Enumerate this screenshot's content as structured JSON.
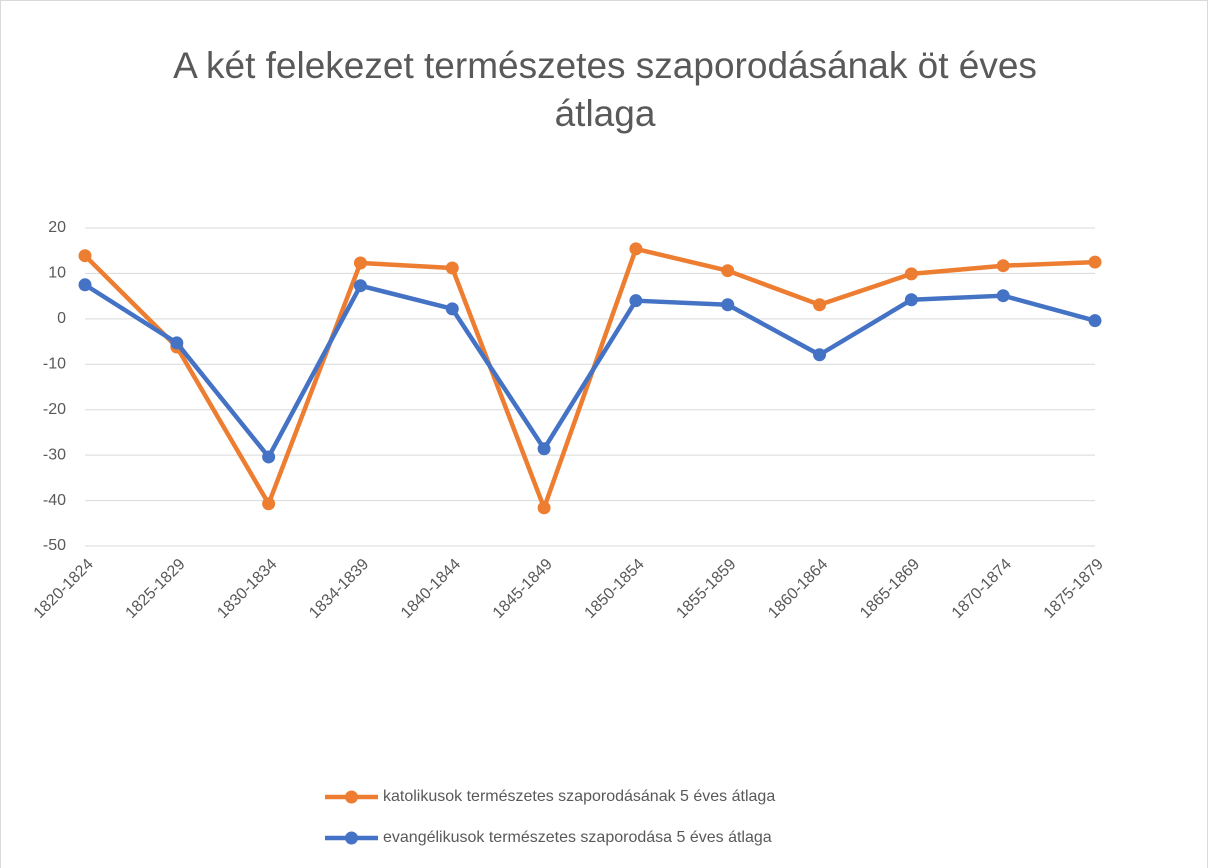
{
  "chart_data": {
    "type": "line",
    "title": "A két felekezet természetes szaporodásának öt éves átlaga",
    "categories": [
      "1820-1824",
      "1825-1829",
      "1830-1834",
      "1834-1839",
      "1840-1844",
      "1845-1849",
      "1850-1854",
      "1855-1859",
      "1860-1864",
      "1865-1869",
      "1870-1874",
      "1875-1879"
    ],
    "series": [
      {
        "name": "katolikusok természetes szaporodásának 5 éves átlaga",
        "color": "#ed7d31",
        "values": [
          13.9,
          -6.2,
          -40.7,
          12.3,
          11.2,
          -41.6,
          15.4,
          10.6,
          3.1,
          9.9,
          11.7,
          12.5
        ]
      },
      {
        "name": "evangélikusok természetes szaporodása 5 éves átlaga",
        "color": "#4472c4",
        "values": [
          7.5,
          -5.3,
          -30.4,
          7.3,
          2.2,
          -28.6,
          4.0,
          3.1,
          -7.9,
          4.2,
          5.1,
          -0.4
        ]
      }
    ],
    "ylim": [
      -50,
      20
    ],
    "yticks": [
      -50,
      -40,
      -30,
      -20,
      -10,
      0,
      10,
      20
    ],
    "grid": true,
    "legend": "bottom"
  }
}
